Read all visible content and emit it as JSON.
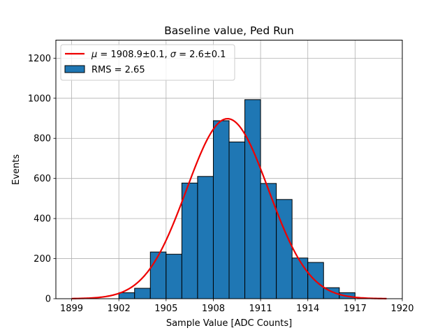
{
  "chart_data": {
    "type": "bar",
    "title": "Baseline value, Ped Run",
    "xlabel": "Sample Value [ADC Counts]",
    "ylabel": "Events",
    "xlim": [
      1898.0,
      1920.0
    ],
    "ylim": [
      0,
      1290
    ],
    "xticks": [
      1899,
      1902,
      1905,
      1908,
      1911,
      1914,
      1917,
      1920
    ],
    "yticks": [
      0,
      200,
      400,
      600,
      800,
      1000,
      1200
    ],
    "grid": true,
    "legend_position": "top-left",
    "histogram": {
      "name": "RMS = 2.65",
      "color": "#1f77b4",
      "edge_color": "#000000",
      "bin_edges": [
        1899.0,
        1900.0,
        1901.0,
        1902.0,
        1903.0,
        1904.0,
        1905.0,
        1906.0,
        1907.0,
        1908.0,
        1909.0,
        1910.0,
        1911.0,
        1912.0,
        1913.0,
        1914.0,
        1915.0,
        1916.0,
        1917.0,
        1918.0,
        1919.0
      ],
      "counts": [
        0,
        0,
        0,
        30,
        52,
        233,
        222,
        577,
        610,
        888,
        782,
        993,
        575,
        495,
        203,
        181,
        55,
        30,
        0,
        0
      ]
    },
    "fit": {
      "name_parts": [
        "μ",
        " = 1908.9±0.1, ",
        "σ",
        " = 2.6±0.1"
      ],
      "color": "#ee0000",
      "mu": 1908.9,
      "sigma": 2.6,
      "amplitude": 898,
      "x_range": [
        1899.0,
        1919.0
      ]
    }
  }
}
